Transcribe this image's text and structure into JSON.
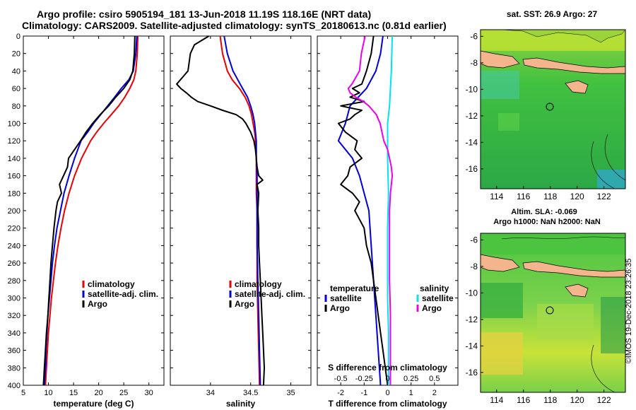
{
  "header": {
    "line1": "Argo profile: csiro 5905194_181 13-Jun-2018 11.19S 118.16E (NRT data)",
    "line2": "Climatology: CARS2009. Satellite-adjusted climatology: synTS_20180613.nc (0.81d earlier)"
  },
  "colors": {
    "climatology": "#ee0000",
    "satellite": "#0000dd",
    "argo": "#000000",
    "sat_salinity": "#00e5ee",
    "argo_salinity": "#ee00ee",
    "land": "#f4b48c"
  },
  "depth_axis": {
    "ticks": [
      0,
      20,
      40,
      60,
      80,
      100,
      120,
      140,
      160,
      180,
      200,
      220,
      240,
      260,
      280,
      300,
      320,
      340,
      360,
      380,
      400
    ],
    "ylim": [
      0,
      400
    ]
  },
  "chart_data": [
    {
      "type": "line",
      "id": "temperature",
      "xlabel": "temperature (deg C)",
      "xlim": [
        5,
        33
      ],
      "xticks": [
        5,
        10,
        15,
        20,
        25,
        30
      ],
      "ylim": [
        0,
        400
      ],
      "legend": [
        "climatology",
        "satellite-adj. clim.",
        "Argo"
      ],
      "series": [
        {
          "name": "climatology",
          "color": "#ee0000",
          "y": [
            0,
            20,
            40,
            50,
            60,
            70,
            80,
            90,
            100,
            110,
            120,
            140,
            160,
            180,
            200,
            220,
            240,
            260,
            280,
            300,
            320,
            340,
            360,
            380,
            400
          ],
          "x": [
            27.8,
            27.7,
            27.4,
            27.0,
            26.2,
            25.2,
            24.0,
            22.5,
            21.0,
            19.6,
            18.4,
            16.6,
            15.2,
            14.1,
            13.2,
            12.5,
            11.9,
            11.4,
            11.0,
            10.6,
            10.3,
            10.0,
            9.8,
            9.6,
            9.4
          ]
        },
        {
          "name": "satellite-adj. clim.",
          "color": "#0000dd",
          "y": [
            0,
            20,
            40,
            50,
            60,
            70,
            80,
            90,
            100,
            110,
            120,
            140,
            160,
            180,
            200,
            220,
            240,
            260,
            280,
            300,
            320,
            340,
            360,
            380,
            400
          ],
          "x": [
            27.6,
            27.4,
            26.9,
            26.0,
            24.5,
            23.2,
            21.8,
            20.4,
            19.0,
            17.8,
            16.5,
            15.2,
            14.1,
            13.1,
            12.4,
            11.7,
            11.2,
            10.8,
            10.5,
            10.2,
            9.9,
            9.7,
            9.5,
            9.4,
            9.2
          ]
        },
        {
          "name": "Argo",
          "color": "#000000",
          "y": [
            0,
            20,
            40,
            50,
            60,
            70,
            80,
            90,
            100,
            110,
            120,
            130,
            140,
            150,
            160,
            170,
            180,
            190,
            200,
            220,
            240,
            260,
            280,
            300,
            320,
            340,
            360,
            380,
            400
          ],
          "x": [
            27.2,
            27.1,
            26.8,
            26.2,
            25.0,
            23.4,
            22.0,
            20.3,
            18.8,
            17.5,
            16.4,
            15.2,
            14.0,
            13.8,
            13.0,
            12.2,
            12.6,
            11.8,
            11.5,
            11.1,
            10.8,
            10.5,
            10.3,
            10.1,
            9.9,
            9.6,
            9.4,
            9.2,
            9.0
          ]
        }
      ]
    },
    {
      "type": "line",
      "id": "salinity",
      "xlabel": "salinity",
      "xlim": [
        33.5,
        35.25
      ],
      "xticks": [
        34,
        34.5,
        35
      ],
      "ylim": [
        0,
        400
      ],
      "legend": [
        "climatology",
        "satellite-adj. clim.",
        "Argo"
      ],
      "series": [
        {
          "name": "climatology",
          "color": "#ee0000",
          "y": [
            0,
            20,
            40,
            50,
            60,
            70,
            80,
            90,
            100,
            110,
            120,
            140,
            160,
            180,
            200,
            240,
            280,
            320,
            360,
            400
          ],
          "x": [
            34.12,
            34.15,
            34.21,
            34.27,
            34.36,
            34.43,
            34.48,
            34.51,
            34.53,
            34.55,
            34.56,
            34.57,
            34.57,
            34.57,
            34.58,
            34.58,
            34.58,
            34.59,
            34.6,
            34.61
          ]
        },
        {
          "name": "satellite-adj. clim.",
          "color": "#0000dd",
          "y": [
            0,
            20,
            40,
            50,
            60,
            70,
            80,
            90,
            100,
            110,
            120,
            140,
            160,
            180,
            200,
            240,
            280,
            320,
            360,
            400
          ],
          "x": [
            34.17,
            34.21,
            34.28,
            34.34,
            34.4,
            34.46,
            34.5,
            34.53,
            34.55,
            34.56,
            34.57,
            34.57,
            34.58,
            34.58,
            34.58,
            34.58,
            34.59,
            34.6,
            34.61,
            34.62
          ]
        },
        {
          "name": "Argo",
          "color": "#000000",
          "y": [
            0,
            10,
            20,
            40,
            55,
            60,
            65,
            70,
            75,
            80,
            85,
            90,
            95,
            100,
            110,
            120,
            130,
            140,
            150,
            160,
            165,
            170,
            180,
            200,
            220,
            240,
            260,
            280,
            300,
            320,
            340,
            360,
            380,
            400
          ],
          "x": [
            33.98,
            33.8,
            33.75,
            33.72,
            33.58,
            33.63,
            33.7,
            33.76,
            33.84,
            34.0,
            34.15,
            34.32,
            34.4,
            34.44,
            34.5,
            34.54,
            34.56,
            34.57,
            34.58,
            34.6,
            34.65,
            34.58,
            34.6,
            34.59,
            34.6,
            34.6,
            34.61,
            34.62,
            34.63,
            34.64,
            34.65,
            34.66,
            34.67,
            34.66
          ]
        }
      ]
    },
    {
      "type": "line",
      "id": "difference",
      "xlabel": "T difference from climatology",
      "xlabel_top": "S difference from climatology",
      "xlim": [
        -3,
        3
      ],
      "xticks": [
        -2,
        -1,
        0,
        1,
        2
      ],
      "xticks_s": [
        "-0.5",
        "-0.25",
        "0",
        "0.25",
        "0.5"
      ],
      "ylim": [
        0,
        400
      ],
      "legend_temperature_title": "temperature",
      "legend_salinity_title": "salinity",
      "legend": [
        "satellite",
        "Argo",
        "satellite",
        "Argo"
      ],
      "series": [
        {
          "name": "satellite T",
          "color": "#0000dd",
          "y": [
            0,
            20,
            40,
            60,
            80,
            100,
            120,
            140,
            160,
            180,
            200,
            240,
            280,
            320,
            360,
            400
          ],
          "x": [
            -0.2,
            -0.3,
            -0.5,
            -0.9,
            -1.6,
            -1.8,
            -2.1,
            -1.5,
            -1.2,
            -1.0,
            -0.8,
            -0.7,
            -0.6,
            -0.5,
            -0.4,
            -0.3
          ]
        },
        {
          "name": "Argo T",
          "color": "#000000",
          "y": [
            0,
            20,
            40,
            55,
            60,
            65,
            70,
            75,
            80,
            85,
            90,
            95,
            100,
            110,
            120,
            130,
            140,
            150,
            160,
            170,
            180,
            190,
            200,
            220,
            240,
            260,
            280,
            300,
            320,
            340,
            360,
            380,
            400
          ],
          "x": [
            -0.6,
            -0.7,
            -0.9,
            -1.1,
            -1.5,
            -1.2,
            -1.6,
            -1.0,
            -2.0,
            -1.1,
            -1.4,
            -1.6,
            -2.1,
            -1.8,
            -1.3,
            -1.4,
            -1.1,
            -1.6,
            -1.7,
            -2.0,
            -1.5,
            -1.2,
            -1.4,
            -1.0,
            -0.9,
            -0.7,
            -0.6,
            -0.5,
            -0.4,
            -0.3,
            -0.2,
            -0.1,
            0.0
          ]
        },
        {
          "name": "satellite S",
          "color": "#00e5ee",
          "y": [
            0,
            40,
            80,
            100,
            140,
            180,
            220,
            260,
            300,
            340,
            380,
            400
          ],
          "x": [
            0.05,
            0.04,
            0.02,
            0.0,
            0.0,
            0.01,
            0.0,
            0.0,
            0.0,
            0.01,
            0.01,
            0.01
          ]
        },
        {
          "name": "Argo S",
          "color": "#ee00ee",
          "y": [
            0,
            10,
            20,
            40,
            55,
            60,
            65,
            70,
            75,
            80,
            85,
            90,
            95,
            100,
            110,
            120,
            130,
            140,
            150,
            160,
            170,
            180,
            200,
            240,
            280,
            320,
            360,
            400
          ],
          "x": [
            -0.24,
            -0.26,
            -0.28,
            -0.3,
            -0.38,
            -0.42,
            -0.4,
            -0.34,
            -0.26,
            -0.2,
            -0.16,
            -0.12,
            -0.1,
            -0.08,
            -0.06,
            -0.04,
            0.0,
            0.02,
            0.04,
            0.05,
            0.04,
            0.03,
            0.02,
            0.02,
            0.02,
            0.03,
            0.03,
            0.03
          ]
        }
      ]
    }
  ],
  "maps": {
    "sst": {
      "title": "sat. SST: 26.9 Argo: 27"
    },
    "sla": {
      "title_line1": "Altim. SLA: -0.069",
      "title_line2": "Argo h1000: NaN h2000: NaN"
    },
    "lon_ticks": [
      114,
      116,
      118,
      120,
      122
    ],
    "lat_ticks": [
      -6,
      -8,
      -10,
      -12,
      -14,
      -16
    ],
    "lon_range": [
      112.8,
      123.6
    ],
    "lat_range": [
      -5.5,
      -17.5
    ]
  },
  "credit": "©IMOS 19-Dec-2018 23:26:35"
}
